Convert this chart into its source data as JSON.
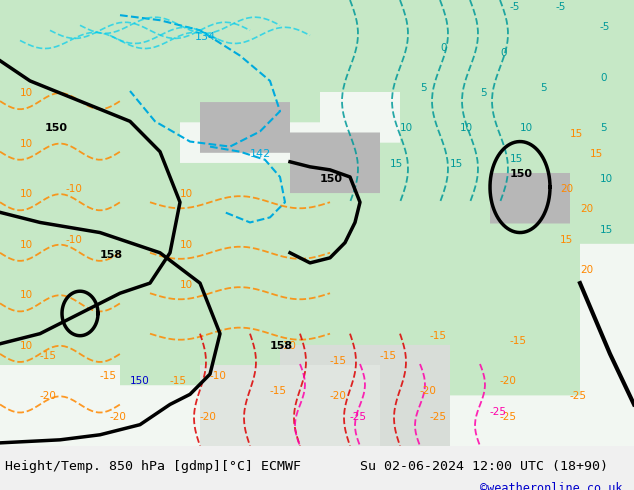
{
  "title_left": "Height/Temp. 850 hPa [gdmp][°C] ECMWF",
  "title_right": "Su 02-06-2024 12:00 UTC (18+90)",
  "credit": "©weatheronline.co.uk",
  "fig_width": 6.34,
  "fig_height": 4.9,
  "dpi": 100,
  "bg_color": "#e8f5e8",
  "border_color": "#cccccc",
  "title_fontsize": 9.5,
  "credit_fontsize": 8.5,
  "credit_color": "#0000cc",
  "title_color": "#000000",
  "map_bg_light_green": "#c8e6c8",
  "map_bg_gray": "#b0b0b0",
  "contour_black_color": "#000000",
  "contour_cyan_color": "#00ccff",
  "contour_orange_color": "#ff8800",
  "contour_teal_color": "#008080",
  "contour_red_color": "#cc0000",
  "contour_pink_color": "#ff00aa",
  "contour_lgreen_color": "#88cc00"
}
